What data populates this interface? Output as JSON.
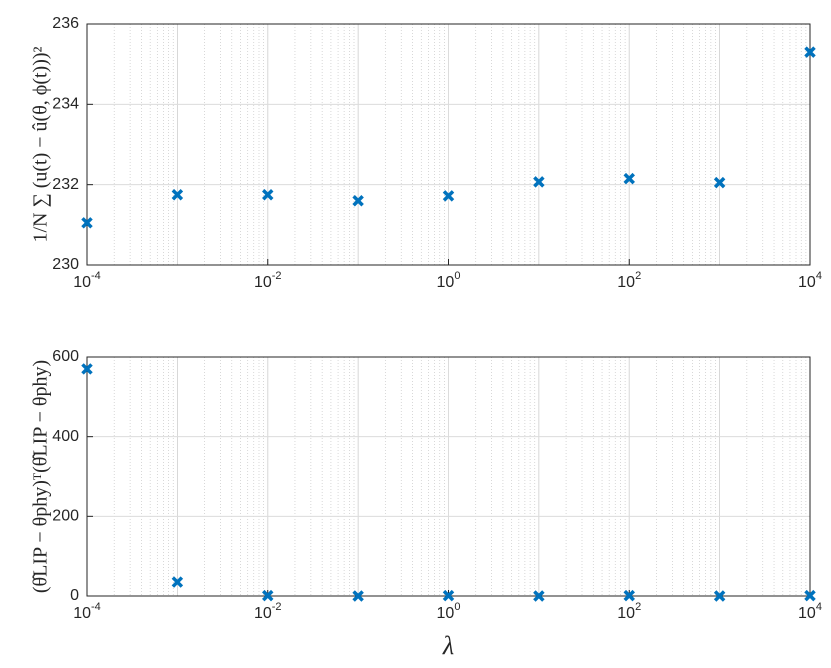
{
  "chart_data": [
    {
      "type": "scatter",
      "ylabel": "1/N ∑ (u(t) − û(θ, ϕ(t)))²",
      "x": [
        0.0001,
        0.001,
        0.01,
        0.1,
        1,
        10,
        100,
        1000,
        10000
      ],
      "series": [
        {
          "color": "#0072bd",
          "values": [
            231.05,
            231.75,
            231.75,
            231.6,
            231.72,
            232.07,
            232.15,
            232.05,
            235.3
          ]
        }
      ],
      "xlim": [
        0.0001,
        10000
      ],
      "xscale": "log",
      "xticks": [
        {
          "value": 0.0001,
          "label": "10^-4"
        },
        {
          "value": 0.01,
          "label": "10^-2"
        },
        {
          "value": 1,
          "label": "10^0"
        },
        {
          "value": 100,
          "label": "10^2"
        },
        {
          "value": 10000,
          "label": "10^4"
        }
      ],
      "ylim": [
        230,
        236
      ],
      "yticks": [
        230,
        232,
        234,
        236
      ],
      "grid": true
    },
    {
      "type": "scatter",
      "ylabel": "(θ̂LIP − θphy)ᵀ(θ̂LIP − θphy)",
      "xlabel": "λ",
      "x": [
        0.0001,
        0.001,
        0.01,
        0.1,
        1,
        10,
        100,
        1000,
        10000
      ],
      "series": [
        {
          "color": "#0072bd",
          "values": [
            570,
            35,
            1,
            0,
            1,
            0,
            1,
            0,
            1
          ]
        }
      ],
      "xlim": [
        0.0001,
        10000
      ],
      "xscale": "log",
      "xticks": [
        {
          "value": 0.0001,
          "label": "10^-4"
        },
        {
          "value": 0.01,
          "label": "10^-2"
        },
        {
          "value": 1,
          "label": "10^0"
        },
        {
          "value": 100,
          "label": "10^2"
        },
        {
          "value": 10000,
          "label": "10^4"
        }
      ],
      "ylim": [
        0,
        600
      ],
      "yticks": [
        0,
        200,
        400,
        600
      ],
      "grid": true
    }
  ]
}
